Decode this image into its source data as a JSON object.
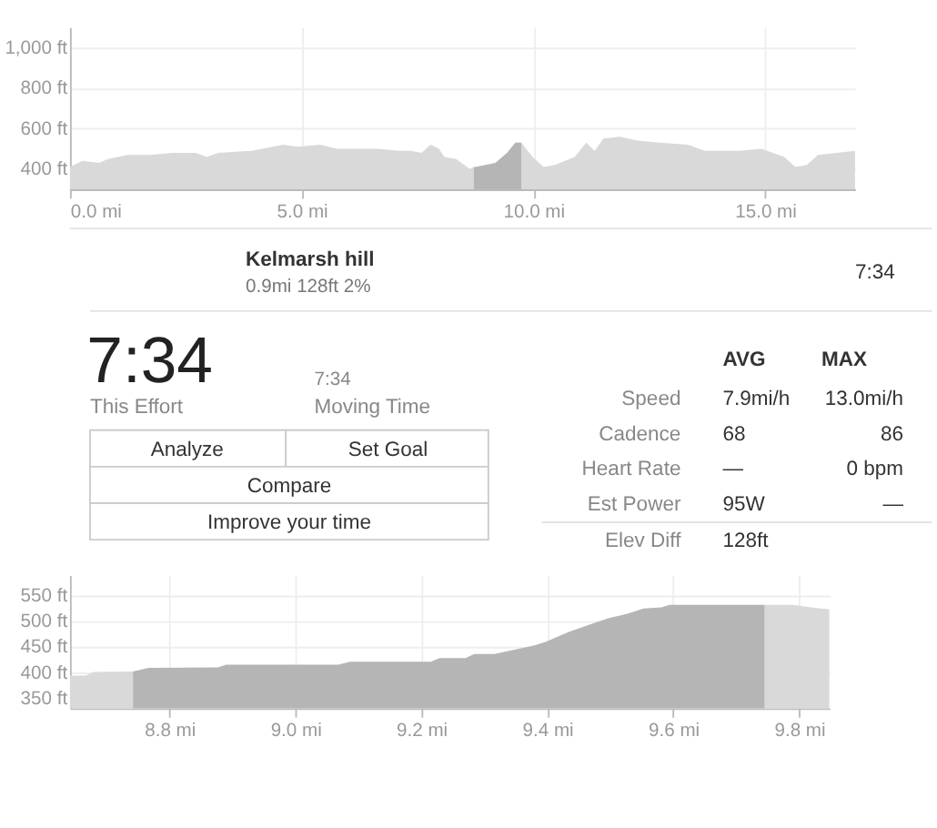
{
  "chart_data": [
    {
      "type": "area",
      "xlim": [
        0,
        16.94
      ],
      "ylim": [
        300,
        1100
      ],
      "grid": true,
      "xticks": [
        {
          "value": 0,
          "label": "0.0 mi"
        },
        {
          "value": 5,
          "label": "5.0 mi"
        },
        {
          "value": 10,
          "label": "10.0 mi"
        },
        {
          "value": 15,
          "label": "15.0 mi"
        }
      ],
      "yticks": [
        {
          "value": 400,
          "label": "400 ft"
        },
        {
          "value": 600,
          "label": "600 ft"
        },
        {
          "value": 800,
          "label": "800 ft"
        },
        {
          "value": 1000,
          "label": "1,000 ft"
        }
      ],
      "series": [
        {
          "color": "#d9d9d9",
          "x": [
            0,
            0.27,
            0.63,
            0.82,
            1.25,
            1.73,
            2.22,
            2.71,
            2.95,
            3.2,
            3.93,
            4.6,
            4.91,
            5.4,
            5.76,
            6.62,
            7.11,
            7.35,
            7.59,
            7.78,
            7.96,
            8.08,
            8.33,
            8.63,
            8.71,
            9.18,
            9.43,
            9.61,
            9.74,
            9.98,
            10.22,
            10.46,
            10.89,
            11.14,
            11.32,
            11.51,
            11.87,
            12.24,
            12.72,
            13.33,
            13.7,
            14.43,
            14.92,
            15.41,
            15.65,
            15.9,
            16.14,
            16.94
          ],
          "values": [
            410,
            440,
            430,
            450,
            470,
            470,
            480,
            480,
            460,
            480,
            490,
            520,
            510,
            520,
            500,
            500,
            490,
            490,
            480,
            520,
            500,
            460,
            450,
            400,
            410,
            null,
            null,
            null,
            530,
            460,
            410,
            420,
            460,
            530,
            490,
            550,
            560,
            540,
            530,
            520,
            490,
            490,
            500,
            460,
            410,
            420,
            470,
            490
          ]
        },
        {
          "color": "#b5b5b5",
          "x": [
            8.71,
            8.75,
            9.18,
            9.43,
            9.61,
            9.74
          ],
          "values": [
            410,
            410,
            430,
            480,
            530,
            530
          ]
        }
      ]
    },
    {
      "type": "other",
      "annotations": [
        "Kelmarsh hill",
        "0.9mi   128ft   2%",
        "7:34",
        "7:34",
        "This Effort",
        "7:34",
        "Moving Time",
        "Analyze",
        "Set Goal",
        "Compare",
        "Improve your time",
        "AVG",
        "MAX",
        "Speed",
        "7.9mi/h",
        "13.0mi/h",
        "Cadence",
        "68",
        "86",
        "Heart Rate",
        "—",
        "0 bpm",
        "Est Power",
        "95W",
        "—",
        "Elev Diff",
        "128ft"
      ]
    },
    {
      "type": "area",
      "xlim": [
        8.642,
        9.848
      ],
      "ylim": [
        330,
        590
      ],
      "grid": true,
      "xticks": [
        {
          "value": 8.8,
          "label": "8.8 mi"
        },
        {
          "value": 9.0,
          "label": "9.0 mi"
        },
        {
          "value": 9.2,
          "label": "9.2 mi"
        },
        {
          "value": 9.4,
          "label": "9.4 mi"
        },
        {
          "value": 9.6,
          "label": "9.6 mi"
        },
        {
          "value": 9.8,
          "label": "9.8 mi"
        }
      ],
      "yticks": [
        {
          "value": 350,
          "label": "350 ft"
        },
        {
          "value": 400,
          "label": "400 ft"
        },
        {
          "value": 450,
          "label": "450 ft"
        },
        {
          "value": 500,
          "label": "500 ft"
        },
        {
          "value": 550,
          "label": "550 ft"
        }
      ],
      "series": [
        {
          "color": "#d9d9d9",
          "x": [
            8.642,
            8.667,
            8.68,
            8.742,
            8.767,
            8.877,
            8.89,
            9.068,
            9.087,
            9.215,
            9.229,
            9.27,
            9.284,
            9.316,
            9.343,
            9.38,
            9.398,
            9.434,
            9.471,
            9.498,
            9.526,
            9.553,
            9.581,
            9.594,
            9.745,
            9.791,
            9.818,
            9.848
          ],
          "values": [
            394,
            394,
            401,
            402,
            null,
            null,
            null,
            null,
            null,
            null,
            null,
            null,
            null,
            null,
            null,
            null,
            null,
            null,
            null,
            null,
            null,
            null,
            null,
            null,
            532,
            532,
            527,
            523
          ]
        },
        {
          "color": "#b5b5b5",
          "x": [
            8.742,
            8.767,
            8.877,
            8.89,
            9.068,
            9.087,
            9.215,
            9.229,
            9.27,
            9.284,
            9.316,
            9.343,
            9.38,
            9.398,
            9.434,
            9.471,
            9.498,
            9.526,
            9.553,
            9.581,
            9.594,
            9.745
          ],
          "values": [
            402,
            409,
            410,
            415,
            415,
            421,
            421,
            428,
            428,
            436,
            436,
            443,
            453,
            460,
            479,
            495,
            506,
            514,
            525,
            527,
            532,
            532
          ]
        }
      ]
    }
  ]
}
